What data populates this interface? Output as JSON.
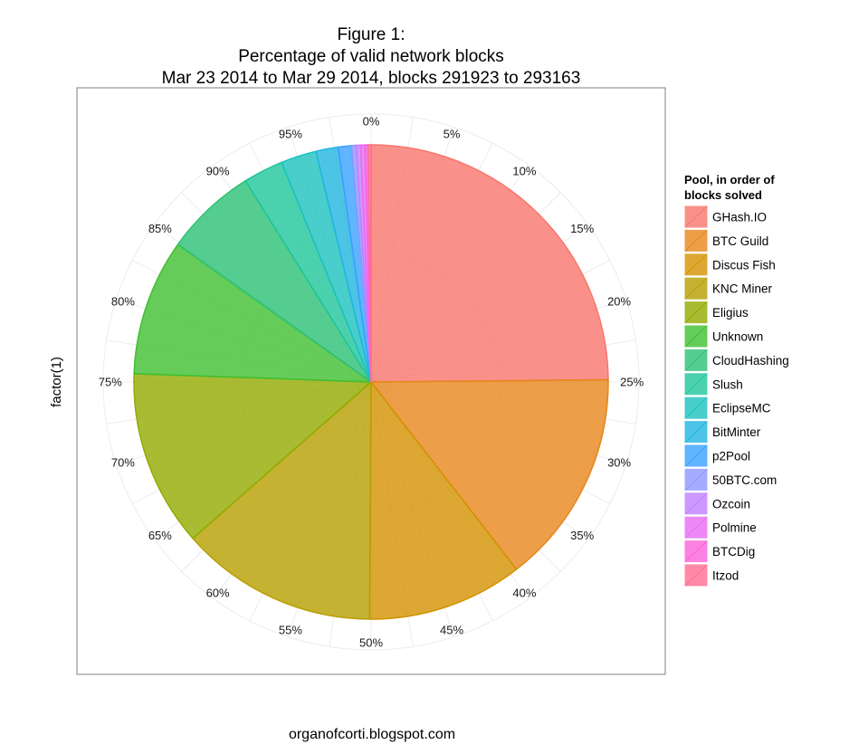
{
  "chart_data": {
    "type": "pie",
    "title_lines": [
      "Figure 1:",
      "Percentage of valid network blocks",
      "Mar 23 2014 to Mar 29 2014, blocks 291923 to 293163"
    ],
    "ylabel": "factor(1)",
    "angle_tick_labels": [
      "0%",
      "5%",
      "10%",
      "15%",
      "20%",
      "25%",
      "30%",
      "35%",
      "40%",
      "45%",
      "50%",
      "55%",
      "60%",
      "65%",
      "70%",
      "75%",
      "80%",
      "85%",
      "90%",
      "95%"
    ],
    "grid": true,
    "legend": {
      "title_lines": [
        "Pool, in order of",
        "blocks solved"
      ],
      "placement": "right"
    },
    "series": [
      {
        "name": "GHash.IO",
        "value": 24.6,
        "color": "#F8766D"
      },
      {
        "name": "BTC Guild",
        "value": 14.5,
        "color": "#E7861B"
      },
      {
        "name": "Discus Fish",
        "value": 10.5,
        "color": "#D39200"
      },
      {
        "name": "KNC Miner",
        "value": 13.3,
        "color": "#B79F00"
      },
      {
        "name": "Eligius",
        "value": 11.9,
        "color": "#93AA00"
      },
      {
        "name": "Unknown",
        "value": 9.2,
        "color": "#3FBF2F"
      },
      {
        "name": "CloudHashing",
        "value": 6.2,
        "color": "#2CC174"
      },
      {
        "name": "Slush",
        "value": 2.7,
        "color": "#1FC59B"
      },
      {
        "name": "EclipseMC",
        "value": 2.4,
        "color": "#1BC2BF"
      },
      {
        "name": "BitMinter",
        "value": 1.5,
        "color": "#20B5E0"
      },
      {
        "name": "p2Pool",
        "value": 0.9,
        "color": "#3AA1FF"
      },
      {
        "name": "50BTC.com",
        "value": 0.3,
        "color": "#8E97FF"
      },
      {
        "name": "Ozcoin",
        "value": 0.3,
        "color": "#C17FFF"
      },
      {
        "name": "Polmine",
        "value": 0.3,
        "color": "#E76BF3"
      },
      {
        "name": "BTCDig",
        "value": 0.2,
        "color": "#FA62DB"
      },
      {
        "name": "Itzod",
        "value": 0.2,
        "color": "#FF6C91"
      }
    ]
  },
  "footer": "organofcorti.blogspot.com"
}
